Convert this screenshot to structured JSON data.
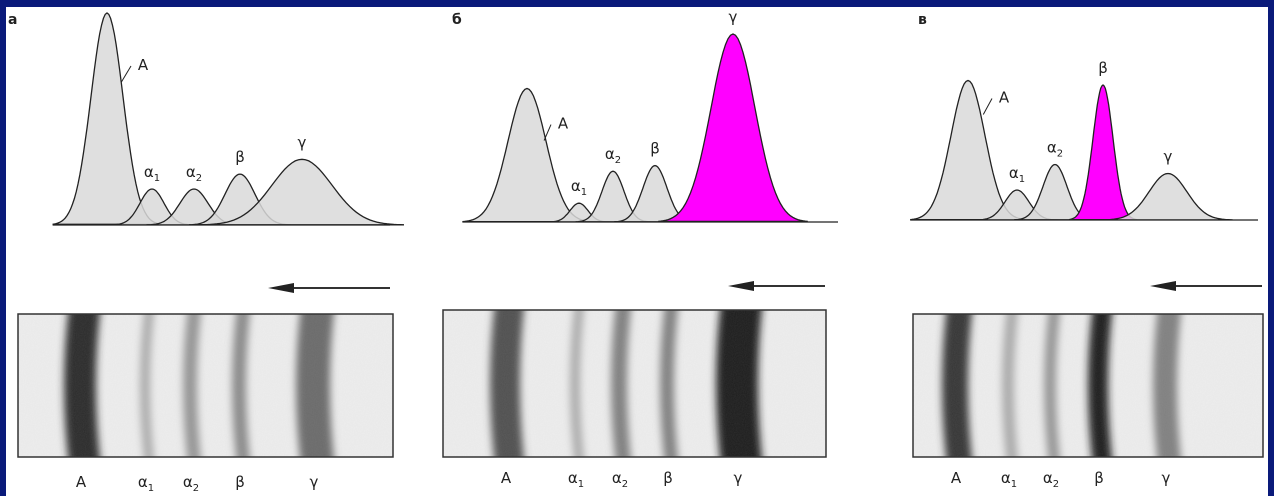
{
  "colors": {
    "frame": "#0a1a7a",
    "paper": "#ffffff",
    "peak_fill": "#d9d9d9",
    "highlight": "#ff00ff",
    "ink": "#222222"
  },
  "panels": [
    {
      "letter": "а",
      "highlight": "",
      "peaks": [
        {
          "key": "A",
          "label": "A",
          "rel_height": 1.0
        },
        {
          "key": "a1",
          "label": "α",
          "sub": "1",
          "rel_height": 0.17
        },
        {
          "key": "a2",
          "label": "α",
          "sub": "2",
          "rel_height": 0.17
        },
        {
          "key": "b",
          "label": "β",
          "rel_height": 0.24
        },
        {
          "key": "g",
          "label": "γ",
          "rel_height": 0.31
        }
      ],
      "bands": [
        {
          "label": "A",
          "intensity": 0.9
        },
        {
          "label": "α",
          "sub": "1",
          "intensity": 0.3
        },
        {
          "label": "α",
          "sub": "2",
          "intensity": 0.4
        },
        {
          "label": "β",
          "intensity": 0.45
        },
        {
          "label": "γ",
          "intensity": 0.6
        }
      ]
    },
    {
      "letter": "б",
      "highlight": "g",
      "peaks": [
        {
          "key": "A",
          "label": "A",
          "rel_height": 0.71
        },
        {
          "key": "a1",
          "label": "α",
          "sub": "1",
          "rel_height": 0.1
        },
        {
          "key": "a2",
          "label": "α",
          "sub": "2",
          "rel_height": 0.27
        },
        {
          "key": "b",
          "label": "β",
          "rel_height": 0.3
        },
        {
          "key": "g",
          "label": "γ",
          "rel_height": 1.0
        }
      ],
      "bands": [
        {
          "label": "A",
          "intensity": 0.72
        },
        {
          "label": "α",
          "sub": "1",
          "intensity": 0.3
        },
        {
          "label": "α",
          "sub": "2",
          "intensity": 0.5
        },
        {
          "label": "β",
          "intensity": 0.5
        },
        {
          "label": "γ",
          "intensity": 0.95
        }
      ]
    },
    {
      "letter": "в",
      "highlight": "b",
      "peaks": [
        {
          "key": "A",
          "label": "A",
          "rel_height": 0.93
        },
        {
          "key": "a1",
          "label": "α",
          "sub": "1",
          "rel_height": 0.2
        },
        {
          "key": "a2",
          "label": "α",
          "sub": "2",
          "rel_height": 0.37
        },
        {
          "key": "b",
          "label": "β",
          "rel_height": 0.9
        },
        {
          "key": "g",
          "label": "γ",
          "rel_height": 0.31
        }
      ],
      "bands": [
        {
          "label": "A",
          "intensity": 0.85
        },
        {
          "label": "α",
          "sub": "1",
          "intensity": 0.3
        },
        {
          "label": "α",
          "sub": "2",
          "intensity": 0.4
        },
        {
          "label": "β",
          "intensity": 0.95
        },
        {
          "label": "γ",
          "intensity": 0.5
        }
      ]
    }
  ]
}
